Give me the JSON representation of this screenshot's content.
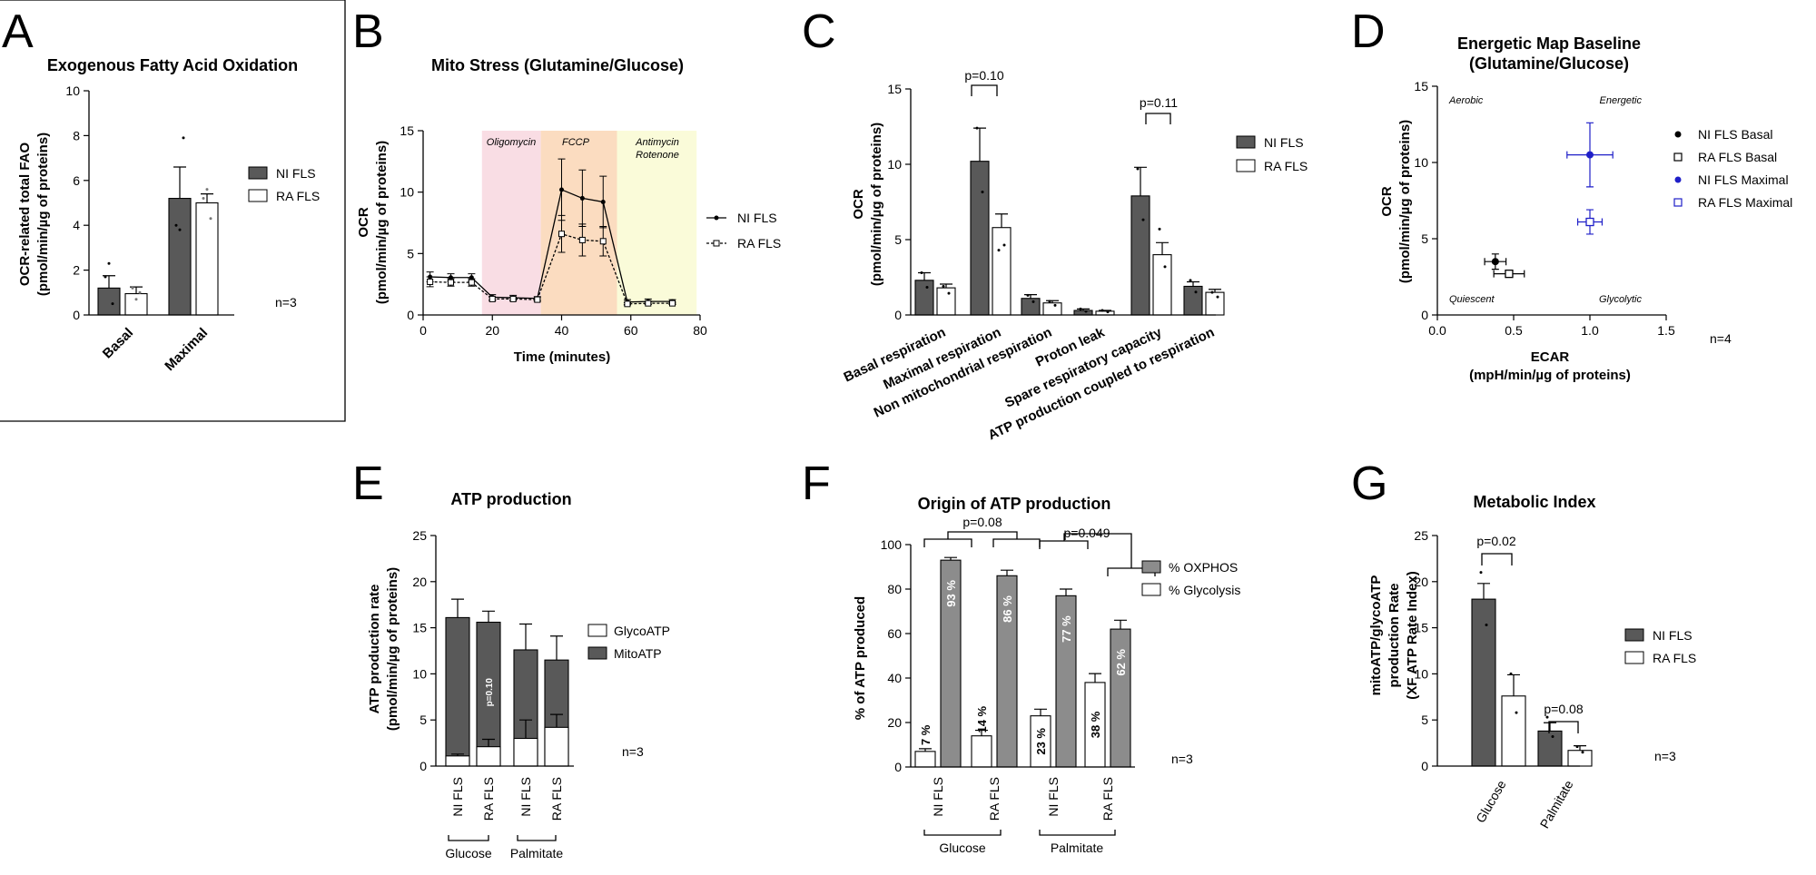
{
  "panels": {
    "A": {
      "letter": "A",
      "title": "Exogenous Fatty Acid Oxidation",
      "ylabel1": "OCR-related total FAO",
      "ylabel2": "(pmol/min/µg of proteins)",
      "n": "n=3",
      "legend": [
        "NI FLS",
        "RA FLS"
      ],
      "yticks": [
        "0",
        "2",
        "4",
        "6",
        "8",
        "10"
      ],
      "categories": [
        "Basal",
        "Maximal"
      ]
    },
    "B": {
      "letter": "B",
      "title": "Mito Stress (Glutamine/Glucose)",
      "ylabel1": "OCR",
      "ylabel2": "(pmol/min/µg of proteins)",
      "xlabel": "Time (minutes)",
      "yticks": [
        "0",
        "5",
        "10",
        "15"
      ],
      "xticks": [
        "0",
        "20",
        "40",
        "60",
        "80"
      ],
      "legend": [
        "NI FLS",
        "RA FLS"
      ],
      "injections": [
        {
          "label": "Oligomycin",
          "label2": "",
          "color": "#f9dde4"
        },
        {
          "label": "FCCP",
          "label2": "",
          "color": "#fbdcc0"
        },
        {
          "label": "Antimycin",
          "label2": "Rotenone",
          "color": "#fafbd9"
        }
      ]
    },
    "C": {
      "letter": "C",
      "title": "",
      "ylabel1": "OCR",
      "ylabel2": "(pmol/min/µg of proteins)",
      "yticks": [
        "0",
        "5",
        "10",
        "15"
      ],
      "legend": [
        "NI FLS",
        "RA FLS"
      ],
      "categories": [
        "Basal respiration",
        "Maximal respiration",
        "Non mitochondrial respiration",
        "Proton leak",
        "Spare respiratory capacity",
        "ATP production coupled to respiration"
      ],
      "pvalues": [
        "p=0.10",
        "p=0.11"
      ]
    },
    "D": {
      "letter": "D",
      "title1": "Energetic Map Baseline",
      "title2": "(Glutamine/Glucose)",
      "ylabel1": "OCR",
      "ylabel2": "(pmol/min/µg of proteins)",
      "xlabel1": "ECAR",
      "xlabel2": "(mpH/min/µg of proteins)",
      "yticks": [
        "0",
        "5",
        "10",
        "15"
      ],
      "xticks": [
        "0.0",
        "0.5",
        "1.0",
        "1.5"
      ],
      "quadrants": [
        "Aerobic",
        "Energetic",
        "Quiescent",
        "Glycolytic"
      ],
      "legend": [
        "NI FLS Basal",
        "RA FLS Basal",
        "NI FLS Maximal",
        "RA FLS Maximal"
      ],
      "n": "n=4"
    },
    "E": {
      "letter": "E",
      "title": "ATP production",
      "ylabel1": "ATP production rate",
      "ylabel2": "(pmol/min/µg of proteins)",
      "yticks": [
        "0",
        "5",
        "10",
        "15",
        "20",
        "25"
      ],
      "legend": [
        "GlycoATP",
        "MitoATP"
      ],
      "bars": [
        "NI FLS",
        "RA FLS",
        "NI FLS",
        "RA FLS"
      ],
      "groups": [
        "Glucose",
        "Palmitate"
      ],
      "pinbar": "p=0.10",
      "n": "n=3"
    },
    "F": {
      "letter": "F",
      "title": "Origin of ATP production",
      "ylabel1": "% of ATP produced",
      "yticks": [
        "0",
        "20",
        "40",
        "60",
        "80",
        "100"
      ],
      "legend": [
        "% OXPHOS",
        "% Glycolysis"
      ],
      "bars": [
        "NI FLS",
        "RA FLS",
        "NI FLS",
        "RA FLS"
      ],
      "groups": [
        "Glucose",
        "Palmitate"
      ],
      "pvalues": [
        "p=0.08",
        "p=0.049"
      ],
      "n": "n=3"
    },
    "G": {
      "letter": "G",
      "title": "Metabolic Index",
      "ylabel1": "mitoATP/glycoATP",
      "ylabel2": "production Rate",
      "ylabel3": "(XF ATP Rate Index)",
      "yticks": [
        "0",
        "5",
        "10",
        "15",
        "20",
        "25"
      ],
      "categories": [
        "Glucose",
        "Palmitate"
      ],
      "legend": [
        "NI FLS",
        "RA FLS"
      ],
      "pvalues": [
        "p=0.02",
        "p=0.08"
      ],
      "n": "n=3"
    }
  },
  "colors": {
    "dark": "#595959",
    "white": "#ffffff",
    "blue": "#1f1fc8"
  },
  "chart_data": [
    {
      "panel": "A",
      "type": "bar",
      "categories": [
        "Basal",
        "Maximal"
      ],
      "ylim": [
        0,
        10
      ],
      "series": [
        {
          "name": "NI FLS",
          "values": [
            1.2,
            5.2
          ],
          "err": [
            0.55,
            1.4
          ]
        },
        {
          "name": "RA FLS",
          "values": [
            0.95,
            5.0
          ],
          "err": [
            0.3,
            0.4
          ]
        }
      ]
    },
    {
      "panel": "B",
      "type": "line",
      "xlim": [
        0,
        80
      ],
      "ylim": [
        0,
        15
      ],
      "x": [
        0,
        4,
        8,
        12,
        16,
        20,
        24,
        28,
        32,
        36,
        40,
        44,
        48,
        52,
        56,
        60,
        64,
        68,
        72
      ],
      "series": [
        {
          "name": "NI FLS",
          "x": [
            2,
            8,
            14,
            20,
            26,
            33,
            40,
            46,
            52,
            59,
            65,
            72
          ],
          "values": [
            3.1,
            3.05,
            3.05,
            1.45,
            1.4,
            1.35,
            10.2,
            9.5,
            9.2,
            1.05,
            1.1,
            1.1
          ],
          "err": [
            0.4,
            0.3,
            0.3,
            0.2,
            0.2,
            0.15,
            2.5,
            2.3,
            2.1,
            0.2,
            0.2,
            0.15
          ]
        },
        {
          "name": "RA FLS",
          "x": [
            2,
            8,
            14,
            20,
            26,
            33,
            40,
            46,
            52,
            59,
            65,
            72
          ],
          "values": [
            2.7,
            2.65,
            2.65,
            1.3,
            1.3,
            1.25,
            6.6,
            6.1,
            6.0,
            0.9,
            0.95,
            0.95
          ],
          "err": [
            0.4,
            0.3,
            0.3,
            0.15,
            0.15,
            0.15,
            1.5,
            1.3,
            1.2,
            0.1,
            0.1,
            0.1
          ]
        }
      ],
      "injections_x": [
        [
          17,
          34
        ],
        [
          34,
          56
        ],
        [
          56,
          79
        ]
      ]
    },
    {
      "panel": "C",
      "type": "bar",
      "ylim": [
        0,
        15
      ],
      "categories": [
        "Basal respiration",
        "Maximal respiration",
        "Non mitochondrial respiration",
        "Proton leak",
        "Spare respiratory capacity",
        "ATP production coupled to respiration"
      ],
      "series": [
        {
          "name": "NI FLS",
          "values": [
            2.3,
            10.2,
            1.1,
            0.3,
            7.9,
            1.9
          ],
          "err": [
            0.5,
            2.2,
            0.25,
            0.1,
            1.9,
            0.3
          ]
        },
        {
          "name": "RA FLS",
          "values": [
            1.8,
            5.8,
            0.8,
            0.25,
            4.0,
            1.5
          ],
          "err": [
            0.25,
            0.9,
            0.15,
            0.05,
            0.8,
            0.2
          ]
        }
      ]
    },
    {
      "panel": "D",
      "type": "scatter",
      "xlim": [
        0,
        1.5
      ],
      "ylim": [
        0,
        15
      ],
      "series": [
        {
          "name": "NI FLS Basal",
          "x": [
            0.38
          ],
          "y": [
            3.5
          ],
          "xerr": [
            0.07
          ],
          "yerr": [
            0.5
          ]
        },
        {
          "name": "RA FLS Basal",
          "x": [
            0.47
          ],
          "y": [
            2.7
          ],
          "xerr": [
            0.1
          ],
          "yerr": [
            0.2
          ]
        },
        {
          "name": "NI FLS Maximal",
          "x": [
            1.0
          ],
          "y": [
            10.5
          ],
          "xerr": [
            0.15
          ],
          "yerr": [
            2.1
          ]
        },
        {
          "name": "RA FLS Maximal",
          "x": [
            1.0
          ],
          "y": [
            6.1
          ],
          "xerr": [
            0.08
          ],
          "yerr": [
            0.8
          ]
        }
      ]
    },
    {
      "panel": "E",
      "type": "bar",
      "stacked": true,
      "ylim": [
        0,
        25
      ],
      "categories": [
        "NI FLS",
        "RA FLS",
        "NI FLS",
        "RA FLS"
      ],
      "series": [
        {
          "name": "GlycoATP",
          "values": [
            1.1,
            2.1,
            3.0,
            4.2
          ],
          "err": [
            0.2,
            0.8,
            2.0,
            1.4
          ]
        },
        {
          "name": "MitoATP",
          "values": [
            15.0,
            13.5,
            9.6,
            7.3
          ],
          "err": [
            2.0,
            1.2,
            2.8,
            2.6
          ]
        }
      ]
    },
    {
      "panel": "F",
      "type": "bar",
      "ylim": [
        0,
        100
      ],
      "categories": [
        "NI FLS",
        "RA FLS",
        "NI FLS",
        "RA FLS"
      ],
      "series": [
        {
          "name": "% Glycolysis",
          "values": [
            7,
            14,
            23,
            38
          ],
          "err": [
            1.2,
            2.5,
            3,
            4
          ],
          "labels": [
            "7 %",
            "14 %",
            "23 %",
            "38 %"
          ]
        },
        {
          "name": "% OXPHOS",
          "values": [
            93,
            86,
            77,
            62
          ],
          "err": [
            1.2,
            2.5,
            3,
            4
          ],
          "labels": [
            "93 %",
            "86 %",
            "77 %",
            "62 %"
          ]
        }
      ]
    },
    {
      "panel": "G",
      "type": "bar",
      "ylim": [
        0,
        25
      ],
      "categories": [
        "Glucose",
        "Palmitate"
      ],
      "series": [
        {
          "name": "NI FLS",
          "values": [
            18.1,
            3.8
          ],
          "err": [
            1.7,
            0.9
          ]
        },
        {
          "name": "RA FLS",
          "values": [
            7.6,
            1.7
          ],
          "err": [
            2.3,
            0.5
          ]
        }
      ]
    }
  ]
}
